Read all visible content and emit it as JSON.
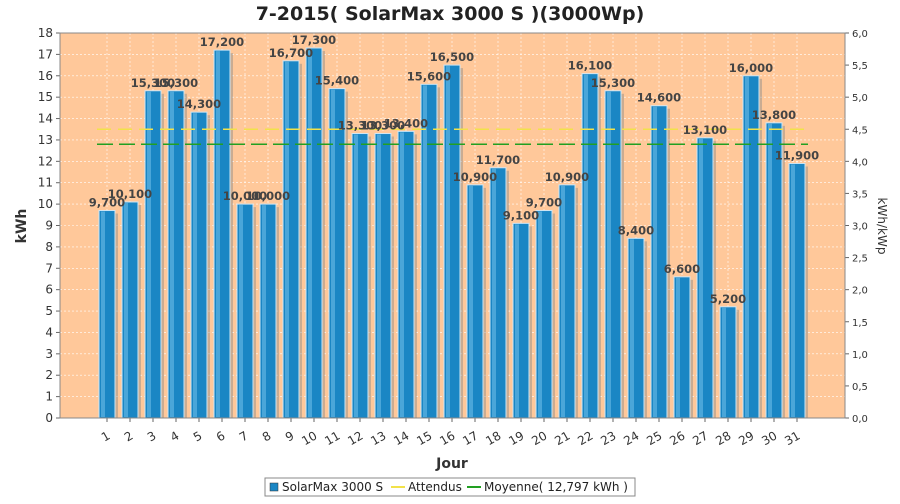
{
  "chart_data": {
    "type": "bar",
    "title": "7-2015( SolarMax 3000 S )(3000Wp)",
    "xlabel": "Jour",
    "ylabel": "kWh",
    "y2label": "kWh/kWp",
    "ylim": [
      0,
      18
    ],
    "y2lim": [
      0,
      6
    ],
    "yticks": [
      "0",
      "1",
      "2",
      "3",
      "4",
      "5",
      "6",
      "7",
      "8",
      "9",
      "10",
      "11",
      "12",
      "13",
      "14",
      "15",
      "16",
      "17",
      "18"
    ],
    "y2ticks": [
      "0,0",
      "0,5",
      "1,0",
      "1,5",
      "2,0",
      "2,5",
      "3,0",
      "3,5",
      "4,0",
      "4,5",
      "5,0",
      "5,5",
      "6,0"
    ],
    "categories": [
      "1",
      "2",
      "3",
      "4",
      "5",
      "6",
      "7",
      "8",
      "9",
      "10",
      "11",
      "12",
      "13",
      "14",
      "15",
      "16",
      "17",
      "18",
      "19",
      "20",
      "21",
      "22",
      "23",
      "24",
      "25",
      "26",
      "27",
      "28",
      "29",
      "30",
      "31"
    ],
    "series": [
      {
        "name": "SolarMax 3000 S",
        "values": [
          9.7,
          10.1,
          15.3,
          15.3,
          14.3,
          17.2,
          10.0,
          10.0,
          16.7,
          17.3,
          15.4,
          13.3,
          13.3,
          13.4,
          15.6,
          16.5,
          10.9,
          11.7,
          9.1,
          9.7,
          10.9,
          16.1,
          15.3,
          8.4,
          14.6,
          6.6,
          13.1,
          5.2,
          16.0,
          13.8,
          11.9
        ],
        "labels": [
          "9,700",
          "10,100",
          "15,300",
          "15,300",
          "14,300",
          "17,200",
          "10,000",
          "10,000",
          "16,700",
          "17,300",
          "15,400",
          "13,300",
          "13,300",
          "13,400",
          "15,600",
          "16,500",
          "10,900",
          "11,700",
          "9,100",
          "9,700",
          "10,900",
          "16,100",
          "15,300",
          "8,400",
          "14,600",
          "6,600",
          "13,100",
          "5,200",
          "16,000",
          "13,800",
          "11,900"
        ],
        "color": "#1a86c4"
      }
    ],
    "expected": {
      "name": "Attendus",
      "value": 13.5,
      "color": "#f2e24a"
    },
    "average": {
      "name": "Moyenne( 12,797 kWh )",
      "value": 12.797,
      "color": "#22a022"
    },
    "background": "#ffc89a",
    "grid": true,
    "legend_position": "bottom"
  }
}
